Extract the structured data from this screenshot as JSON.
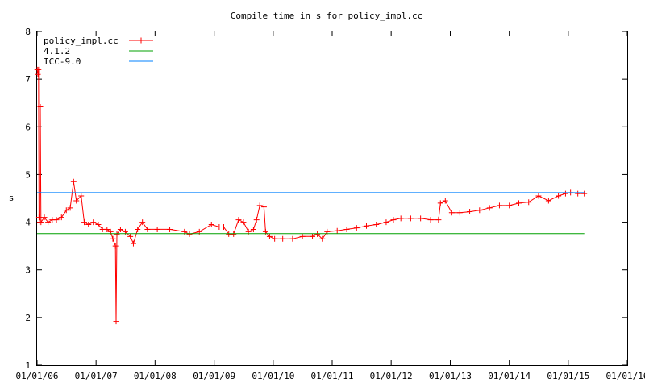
{
  "chart_data": {
    "type": "line",
    "title": "Compile time in s for policy_impl.cc",
    "xlabel": "",
    "ylabel": "s",
    "ylim": [
      1,
      8
    ],
    "xlim": [
      "2006-01-01",
      "2016-01-01"
    ],
    "x_ticks": [
      "01/01/06",
      "01/01/07",
      "01/01/08",
      "01/01/09",
      "01/01/10",
      "01/01/11",
      "01/01/12",
      "01/01/13",
      "01/01/14",
      "01/01/15",
      "01/01/16"
    ],
    "y_ticks": [
      "1",
      "2",
      "3",
      "4",
      "5",
      "6",
      "7",
      "8"
    ],
    "legend_position": "top-left",
    "grid": false,
    "series": [
      {
        "name": "policy_impl.cc",
        "color": "#ff0000",
        "marker": "plus",
        "points": [
          [
            "2006-01-02",
            7.2
          ],
          [
            "2006-01-06",
            7.1
          ],
          [
            "2006-01-10",
            7.2
          ],
          [
            "2006-01-13",
            4.1
          ],
          [
            "2006-01-18",
            4.0
          ],
          [
            "2006-01-21",
            6.42
          ],
          [
            "2006-01-25",
            4.0
          ],
          [
            "2006-02-15",
            4.1
          ],
          [
            "2006-03-10",
            4.0
          ],
          [
            "2006-04-05",
            4.05
          ],
          [
            "2006-05-01",
            4.05
          ],
          [
            "2006-06-01",
            4.1
          ],
          [
            "2006-07-01",
            4.25
          ],
          [
            "2006-07-25",
            4.3
          ],
          [
            "2006-08-15",
            4.85
          ],
          [
            "2006-09-01",
            4.45
          ],
          [
            "2006-10-01",
            4.55
          ],
          [
            "2006-10-20",
            4.0
          ],
          [
            "2006-11-15",
            3.95
          ],
          [
            "2006-12-15",
            4.0
          ],
          [
            "2007-01-15",
            3.95
          ],
          [
            "2007-02-10",
            3.85
          ],
          [
            "2007-03-10",
            3.85
          ],
          [
            "2007-04-01",
            3.8
          ],
          [
            "2007-04-15",
            3.65
          ],
          [
            "2007-05-01",
            3.5
          ],
          [
            "2007-05-05",
            1.92
          ],
          [
            "2007-05-10",
            3.75
          ],
          [
            "2007-06-01",
            3.85
          ],
          [
            "2007-07-01",
            3.8
          ],
          [
            "2007-08-01",
            3.7
          ],
          [
            "2007-08-20",
            3.55
          ],
          [
            "2007-09-15",
            3.85
          ],
          [
            "2007-10-15",
            4.0
          ],
          [
            "2007-11-15",
            3.85
          ],
          [
            "2008-01-15",
            3.85
          ],
          [
            "2008-04-01",
            3.85
          ],
          [
            "2008-07-01",
            3.8
          ],
          [
            "2008-08-01",
            3.75
          ],
          [
            "2008-10-01",
            3.8
          ],
          [
            "2008-12-15",
            3.95
          ],
          [
            "2009-02-01",
            3.9
          ],
          [
            "2009-03-01",
            3.9
          ],
          [
            "2009-04-01",
            3.75
          ],
          [
            "2009-05-01",
            3.75
          ],
          [
            "2009-06-01",
            4.05
          ],
          [
            "2009-07-01",
            4.0
          ],
          [
            "2009-08-01",
            3.8
          ],
          [
            "2009-09-01",
            3.85
          ],
          [
            "2009-09-20",
            4.05
          ],
          [
            "2009-10-10",
            4.35
          ],
          [
            "2009-11-05",
            4.32
          ],
          [
            "2009-11-15",
            3.8
          ],
          [
            "2009-12-10",
            3.7
          ],
          [
            "2010-01-10",
            3.65
          ],
          [
            "2010-03-01",
            3.65
          ],
          [
            "2010-05-01",
            3.65
          ],
          [
            "2010-07-01",
            3.7
          ],
          [
            "2010-09-01",
            3.7
          ],
          [
            "2010-10-01",
            3.75
          ],
          [
            "2010-11-01",
            3.65
          ],
          [
            "2010-12-01",
            3.8
          ],
          [
            "2011-02-01",
            3.82
          ],
          [
            "2011-04-01",
            3.85
          ],
          [
            "2011-06-01",
            3.88
          ],
          [
            "2011-08-01",
            3.92
          ],
          [
            "2011-10-01",
            3.95
          ],
          [
            "2011-12-01",
            4.0
          ],
          [
            "2012-01-15",
            4.05
          ],
          [
            "2012-03-01",
            4.08
          ],
          [
            "2012-05-01",
            4.08
          ],
          [
            "2012-07-01",
            4.08
          ],
          [
            "2012-09-01",
            4.05
          ],
          [
            "2012-10-20",
            4.05
          ],
          [
            "2012-11-01",
            4.4
          ],
          [
            "2012-12-01",
            4.45
          ],
          [
            "2013-01-10",
            4.2
          ],
          [
            "2013-03-01",
            4.2
          ],
          [
            "2013-05-01",
            4.22
          ],
          [
            "2013-07-01",
            4.25
          ],
          [
            "2013-09-01",
            4.3
          ],
          [
            "2013-11-01",
            4.35
          ],
          [
            "2014-01-01",
            4.35
          ],
          [
            "2014-03-01",
            4.4
          ],
          [
            "2014-05-01",
            4.42
          ],
          [
            "2014-07-01",
            4.55
          ],
          [
            "2014-09-01",
            4.45
          ],
          [
            "2014-11-01",
            4.55
          ],
          [
            "2014-12-15",
            4.6
          ],
          [
            "2015-01-15",
            4.62
          ],
          [
            "2015-03-01",
            4.6
          ],
          [
            "2015-04-10",
            4.6
          ]
        ]
      },
      {
        "name": "4.1.2",
        "color": "#00a000",
        "marker": "none",
        "points": [
          [
            "2006-01-01",
            3.76
          ],
          [
            "2015-04-10",
            3.76
          ]
        ]
      },
      {
        "name": "ICC-9.0",
        "color": "#0080ff",
        "marker": "none",
        "points": [
          [
            "2006-01-01",
            4.62
          ],
          [
            "2015-04-10",
            4.62
          ]
        ]
      }
    ]
  }
}
